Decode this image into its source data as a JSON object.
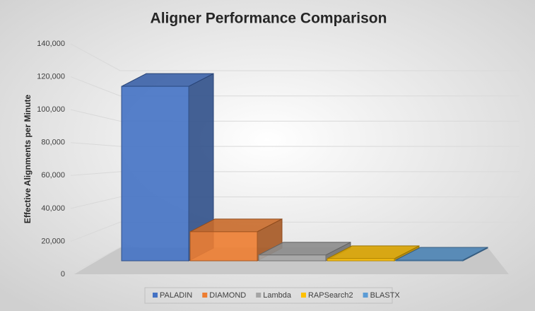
{
  "chart_data": {
    "type": "bar3d",
    "title": "Aligner Performance Comparison",
    "y_label": "Effective Alignments per Minute",
    "categories": [
      "PALADIN",
      "DIAMOND",
      "Lambda",
      "RAPSearch2",
      "BLASTX"
    ],
    "values": [
      120000,
      20000,
      4000,
      1500,
      500
    ],
    "colors": [
      "#4472c4",
      "#ed7d31",
      "#a5a5a5",
      "#ffc000",
      "#5b9bd5"
    ],
    "ylim": [
      0,
      140000
    ],
    "yticks": [
      0,
      {
        "value": 20000,
        "label": "20,000"
      },
      {
        "value": 40000,
        "label": "40,000"
      },
      {
        "value": 60000,
        "label": "60,000"
      },
      {
        "value": 80000,
        "label": "80,000"
      },
      {
        "value": 100000,
        "label": "100,000"
      },
      {
        "value": 120000,
        "label": "120,000"
      },
      {
        "value": 140000,
        "label": "140,000"
      }
    ],
    "grid": true,
    "legend": "bottom"
  }
}
